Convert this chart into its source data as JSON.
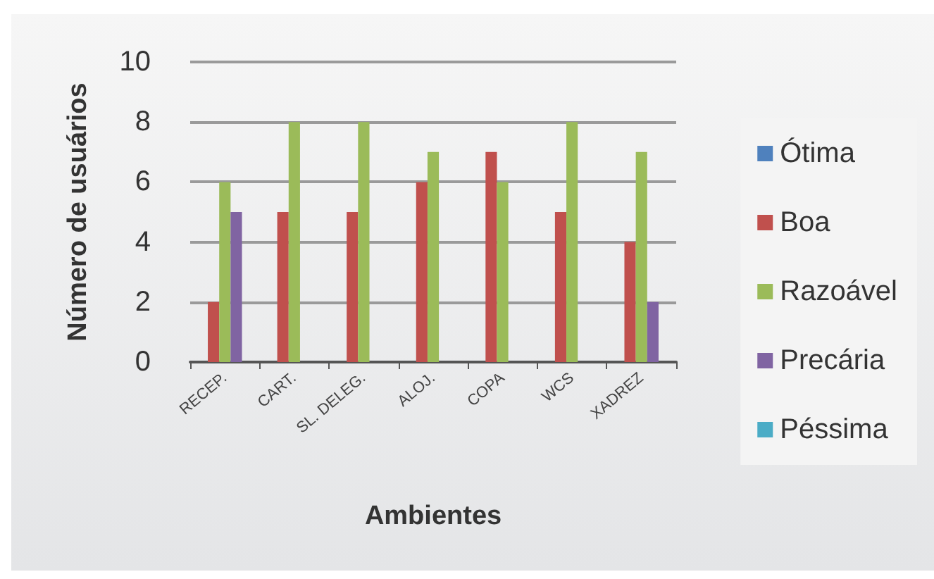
{
  "chart_data": {
    "type": "bar",
    "xlabel": "Ambientes",
    "ylabel": "Número de usuários",
    "categories": [
      "RECEP.",
      "CART.",
      "SL. DELEG.",
      "ALOJ.",
      "COPA",
      "WCS",
      "XADREZ"
    ],
    "series": [
      {
        "name": "Ótima",
        "color": "#4f81bd",
        "values": [
          0,
          0,
          0,
          0,
          0,
          0,
          0
        ]
      },
      {
        "name": "Boa",
        "color": "#c0504d",
        "values": [
          2,
          5,
          5,
          6,
          7,
          5,
          4
        ]
      },
      {
        "name": "Razoável",
        "color": "#9bbb59",
        "values": [
          6,
          8,
          8,
          7,
          6,
          8,
          7
        ]
      },
      {
        "name": "Precária",
        "color": "#8064a2",
        "values": [
          5,
          0,
          0,
          0,
          0,
          0,
          2
        ]
      },
      {
        "name": "Péssima",
        "color": "#4bacc6",
        "values": [
          0,
          0,
          0,
          0,
          0,
          0,
          0
        ]
      }
    ],
    "ylim": [
      0,
      10
    ],
    "yticks": [
      0,
      2,
      4,
      6,
      8,
      10
    ],
    "grid": "y",
    "legend": "right"
  }
}
